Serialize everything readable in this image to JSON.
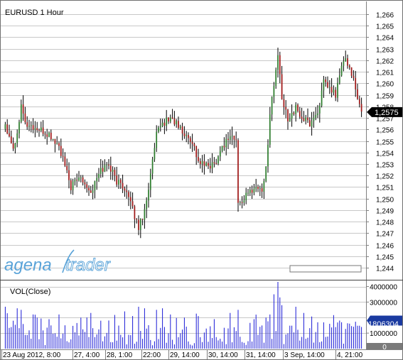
{
  "window": {
    "title": "EURUSD 1 Hour",
    "symbol": "EURUSD",
    "timeframe": "1 Hour"
  },
  "branding": {
    "logo_text_left": "agena",
    "logo_text_right": "trader",
    "logo_color": "#5aa3d8"
  },
  "price_panel": {
    "current_price_label": "1,2575",
    "current_price_value": 1.2575,
    "current_badge_color": "#000000",
    "up_color": "#2e7d2e",
    "down_color": "#a01818"
  },
  "volume_panel": {
    "title": "VOL(Close)",
    "current_volume_label": "1806304",
    "current_volume_value": 1806304,
    "zero_label": "0",
    "bar_color": "#1a1ad6",
    "badge_color": "#1a3aa0"
  },
  "chart_data": [
    {
      "type": "candlestick",
      "title": "EURUSD 1 Hour",
      "ylim": [
        1.2435,
        1.2668
      ],
      "yticks": [
        {
          "value": 1.266,
          "label": "1,266"
        },
        {
          "value": 1.265,
          "label": "1,265"
        },
        {
          "value": 1.264,
          "label": "1,264"
        },
        {
          "value": 1.263,
          "label": "1,263"
        },
        {
          "value": 1.262,
          "label": "1,262"
        },
        {
          "value": 1.261,
          "label": "1,261"
        },
        {
          "value": 1.26,
          "label": "1,260"
        },
        {
          "value": 1.259,
          "label": "1,259"
        },
        {
          "value": 1.258,
          "label": "1,258"
        },
        {
          "value": 1.257,
          "label": "1,257"
        },
        {
          "value": 1.256,
          "label": "1,256"
        },
        {
          "value": 1.255,
          "label": "1,255"
        },
        {
          "value": 1.254,
          "label": "1,254"
        },
        {
          "value": 1.253,
          "label": "1,253"
        },
        {
          "value": 1.252,
          "label": "1,252"
        },
        {
          "value": 1.251,
          "label": "1,251"
        },
        {
          "value": 1.25,
          "label": "1,250"
        },
        {
          "value": 1.249,
          "label": "1,249"
        },
        {
          "value": 1.248,
          "label": "1,248"
        },
        {
          "value": 1.247,
          "label": "1,247"
        },
        {
          "value": 1.246,
          "label": "1,246"
        },
        {
          "value": 1.245,
          "label": "1,245"
        },
        {
          "value": 1.244,
          "label": "1,244"
        }
      ],
      "xticks": [
        "23 Aug 2012, 8:00",
        "27, 4:00",
        "28, 1:00",
        "22:00",
        "29, 14:00",
        "30, 14:00",
        "31, 14:00",
        "3 Sep, 14:00",
        "4, 21:00"
      ],
      "grid": true,
      "anchors": [
        [
          0,
          1.2565
        ],
        [
          4,
          1.2545
        ],
        [
          6,
          1.2555
        ],
        [
          8,
          1.2585
        ],
        [
          10,
          1.2565
        ],
        [
          16,
          1.256
        ],
        [
          22,
          1.2555
        ],
        [
          27,
          1.2545
        ],
        [
          33,
          1.251
        ],
        [
          38,
          1.252
        ],
        [
          43,
          1.2505
        ],
        [
          48,
          1.2525
        ],
        [
          52,
          1.253
        ],
        [
          56,
          1.2515
        ],
        [
          60,
          1.251
        ],
        [
          64,
          1.249
        ],
        [
          67,
          1.2475
        ],
        [
          70,
          1.249
        ],
        [
          73,
          1.252
        ],
        [
          76,
          1.2555
        ],
        [
          79,
          1.2565
        ],
        [
          83,
          1.257
        ],
        [
          86,
          1.2565
        ],
        [
          90,
          1.2555
        ],
        [
          94,
          1.255
        ],
        [
          97,
          1.2532
        ],
        [
          101,
          1.2528
        ],
        [
          105,
          1.253
        ],
        [
          109,
          1.2545
        ],
        [
          113,
          1.2555
        ],
        [
          116,
          1.255
        ],
        [
          117,
          1.2495
        ],
        [
          121,
          1.2502
        ],
        [
          125,
          1.251
        ],
        [
          129,
          1.2508
        ],
        [
          131,
          1.2525
        ],
        [
          133,
          1.2575
        ],
        [
          135,
          1.2598
        ],
        [
          137,
          1.2625
        ],
        [
          139,
          1.2585
        ],
        [
          142,
          1.257
        ],
        [
          146,
          1.2578
        ],
        [
          149,
          1.257
        ],
        [
          153,
          1.2565
        ],
        [
          157,
          1.2575
        ],
        [
          160,
          1.26
        ],
        [
          163,
          1.2595
        ],
        [
          166,
          1.259
        ],
        [
          169,
          1.2615
        ],
        [
          171,
          1.262
        ],
        [
          174,
          1.261
        ],
        [
          177,
          1.2585
        ],
        [
          179,
          1.2575
        ]
      ],
      "candle_count": 180
    },
    {
      "type": "bar",
      "title": "VOL(Close)",
      "ylim": [
        0,
        4300000
      ],
      "yticks": [
        {
          "value": 4000000,
          "label": "4000000"
        },
        {
          "value": 3000000,
          "label": "3000000"
        },
        {
          "value": 1000000,
          "label": "1000000"
        }
      ],
      "spikes": [
        [
          0,
          2700000
        ],
        [
          4,
          1800000
        ],
        [
          6,
          2600000
        ],
        [
          8,
          2500000
        ],
        [
          16,
          2000000
        ],
        [
          22,
          1900000
        ],
        [
          27,
          2200000
        ],
        [
          38,
          2000000
        ],
        [
          43,
          2300000
        ],
        [
          48,
          1800000
        ],
        [
          60,
          2400000
        ],
        [
          64,
          2100000
        ],
        [
          67,
          2700000
        ],
        [
          70,
          2600000
        ],
        [
          76,
          2500000
        ],
        [
          79,
          2600000
        ],
        [
          83,
          2200000
        ],
        [
          90,
          2000000
        ],
        [
          97,
          2100000
        ],
        [
          105,
          1900000
        ],
        [
          113,
          2300000
        ],
        [
          117,
          2500000
        ],
        [
          125,
          1900000
        ],
        [
          131,
          2000000
        ],
        [
          133,
          2200000
        ],
        [
          135,
          3500000
        ],
        [
          137,
          4300000
        ],
        [
          138,
          3300000
        ],
        [
          139,
          2800000
        ],
        [
          146,
          2700000
        ],
        [
          150,
          2300000
        ],
        [
          157,
          1700000
        ],
        [
          163,
          1600000
        ],
        [
          169,
          1700000
        ],
        [
          171,
          1900000
        ]
      ],
      "bar_count": 180
    }
  ]
}
